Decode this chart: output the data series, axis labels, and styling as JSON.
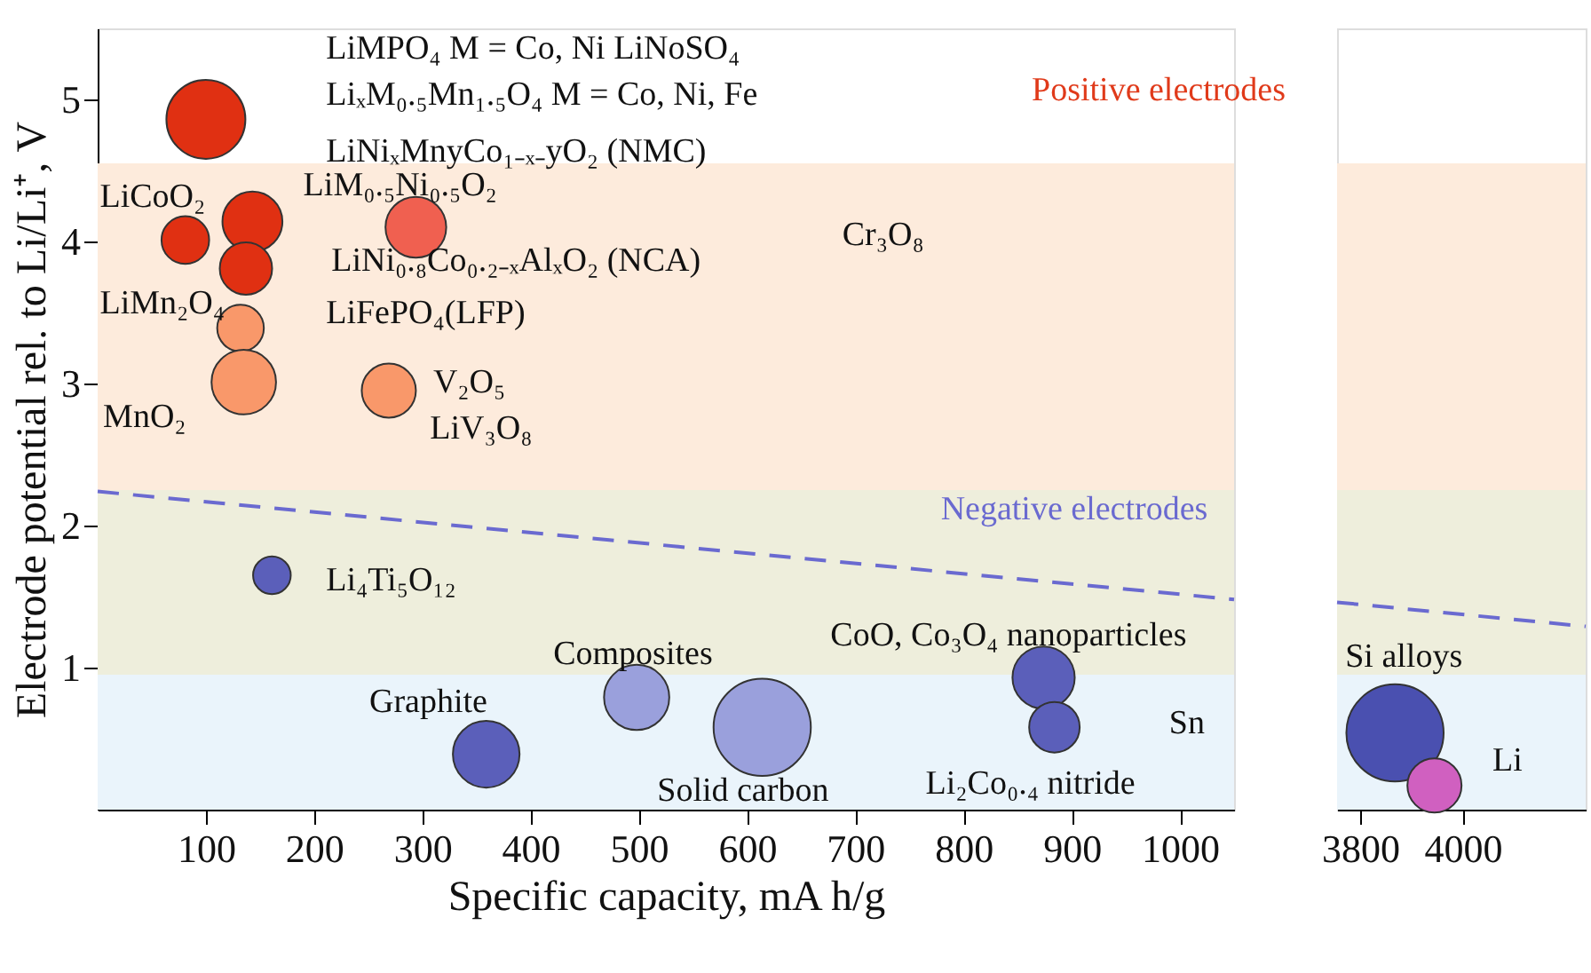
{
  "chart_data": [
    {
      "type": "bubble",
      "xlabel": "Specific capacity, mA h/g",
      "ylabel": "Electrode potential rel. to Li/Li⁺, V",
      "xlim": [
        0,
        1050
      ],
      "xticks": [
        100,
        200,
        300,
        400,
        500,
        600,
        700,
        800,
        900,
        1000
      ],
      "ylim": [
        0,
        5.5
      ],
      "yticks": [
        1,
        2,
        3,
        4,
        5
      ],
      "grid": false,
      "bands": [
        {
          "axis": "y",
          "from": 0,
          "to": 0.95,
          "color": "#eaf4fb"
        },
        {
          "axis": "y",
          "from": 0.95,
          "to": 2.25,
          "color": "#eeeedc"
        },
        {
          "axis": "y",
          "from": 2.25,
          "to": 4.55,
          "color": "#fdebdc"
        }
      ],
      "series": [
        {
          "type": "line",
          "color": "#6a6ad0",
          "line_style": "dashed",
          "x": [
            0,
            1050
          ],
          "values": [
            2.24,
            1.48
          ]
        },
        {
          "x": [
            100,
            143,
            81,
            137,
            132,
            135,
            269,
            294,
            161,
            359,
            498,
            614,
            874,
            884
          ],
          "values": [
            4.86,
            4.14,
            4.01,
            3.81,
            3.39,
            3.01,
            2.95,
            4.1,
            1.65,
            0.39,
            0.79,
            0.58,
            0.93,
            0.58
          ],
          "sizes": [
            0.66,
            0.38,
            0.24,
            0.29,
            0.23,
            0.44,
            0.31,
            0.39,
            0.15,
            0.47,
            0.45,
            1,
            0.41,
            0.27
          ],
          "colors": [
            "#e03012",
            "#e03012",
            "#e03012",
            "#e03012",
            "#f9986a",
            "#f9986a",
            "#f9986a",
            "#f06050",
            "#5b5fba",
            "#5b5fba",
            "#9aa0dc",
            "#9aa0dc",
            "#5b5fba",
            "#5b5fba"
          ]
        }
      ],
      "annotations": [
        "LiMPO₄  M = Co, Ni   LiNoSO₄",
        "LiₓM₀.₅Mn₁.₅O₄   M = Co, Ni, Fe",
        "LiNiₓMnyCo₁₋ₓ₋yO₂ (NMC)",
        "LiCoO₂",
        "LiM₀.₅Ni₀.₅O₂",
        "LiNi₀.₈Co₀.₂₋ₓAlₓO₂ (NCA)",
        "LiMn₂O₄",
        "LiFePO₄(LFP)",
        "MnO₂",
        "V₂O₅",
        "LiV₃O₈",
        "Cr₃O₈",
        "Positive electrodes",
        "Negative electrodes",
        "Li₄Ti₅O₁₂",
        "CoO, Co₃O₄ nanoparticles",
        "Composites",
        "Graphite",
        "Sn",
        "Solid carbon",
        "Li₂Co₀.₄ nitride"
      ]
    },
    {
      "type": "bubble",
      "xlim": [
        3755,
        4240
      ],
      "xticks": [
        3800,
        4000
      ],
      "ylim": [
        0,
        5.5
      ],
      "tick_labels": "x",
      "grid": false,
      "bands": [
        {
          "axis": "y",
          "from": 0,
          "to": 0.95,
          "color": "#eaf4fb"
        },
        {
          "axis": "y",
          "from": 0.95,
          "to": 2.25,
          "color": "#eeeedc"
        },
        {
          "axis": "y",
          "from": 2.25,
          "to": 4.55,
          "color": "#fdebdc"
        }
      ],
      "series": [
        {
          "type": "line",
          "color": "#6a6ad0",
          "line_style": "dashed",
          "x": [
            3755,
            4240
          ],
          "values": [
            1.46,
            1.29
          ]
        },
        {
          "x": [
            3868,
            3945
          ],
          "values": [
            0.54,
            0.17
          ],
          "sizes": [
            1,
            0.31
          ],
          "colors": [
            "#4a50b0",
            "#d060c0"
          ]
        }
      ],
      "annotations": [
        "Si alloys",
        "Li"
      ]
    }
  ]
}
